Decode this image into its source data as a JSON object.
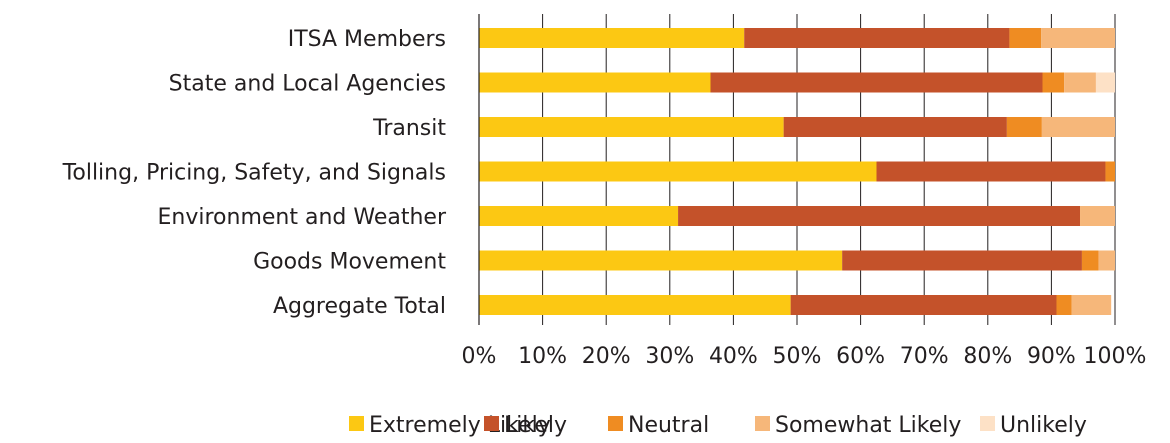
{
  "chart_data": {
    "type": "bar",
    "orientation": "horizontal",
    "stacked": true,
    "title": "",
    "xlabel": "",
    "ylabel": "",
    "xlim": [
      0,
      100
    ],
    "x_ticks": [
      "0%",
      "10%",
      "20%",
      "30%",
      "40%",
      "50%",
      "60%",
      "70%",
      "80%",
      "90%",
      "100%"
    ],
    "grid": true,
    "legend_position": "bottom",
    "categories": [
      "ITSA Members",
      "State and Local Agencies",
      "Transit",
      "Tolling, Pricing, Safety, and Signals",
      "Environment and Weather",
      "Goods Movement",
      "Aggregate Total"
    ],
    "series": [
      {
        "name": "Extremely Likely",
        "color": "#fcc813",
        "values": [
          41.7,
          36.4,
          47.9,
          62.5,
          31.3,
          57.1,
          49.0
        ]
      },
      {
        "name": "Likely",
        "color": "#c4522a",
        "values": [
          41.7,
          52.2,
          35.1,
          36.0,
          63.2,
          37.7,
          41.8
        ]
      },
      {
        "name": "Neutral",
        "color": "#ef8c22",
        "values": [
          5.0,
          3.4,
          5.5,
          1.5,
          0.0,
          2.6,
          2.4
        ]
      },
      {
        "name": "Somewhat Likely",
        "color": "#f6b77a",
        "values": [
          11.6,
          5.0,
          11.5,
          0.0,
          5.5,
          2.6,
          6.2
        ]
      },
      {
        "name": "Unlikely",
        "color": "#fde1c6",
        "values": [
          0.0,
          3.0,
          0.0,
          0.0,
          0.0,
          0.0,
          0.0
        ]
      }
    ]
  }
}
